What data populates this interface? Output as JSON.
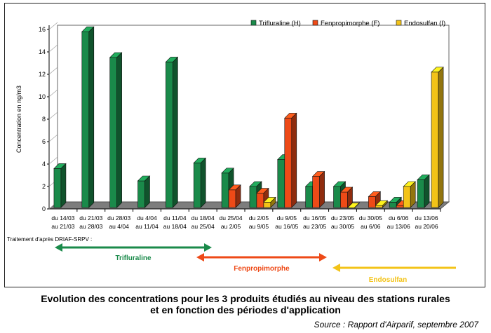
{
  "chart_data": {
    "type": "bar",
    "ylabel": "Concentration en ng/m3",
    "ylim": [
      0,
      16
    ],
    "yticks": [
      0,
      2,
      4,
      6,
      8,
      10,
      12,
      14,
      16
    ],
    "legend_position": "top-right",
    "categories": [
      [
        "du 14/03",
        "au 21/03"
      ],
      [
        "du 21/03",
        "au 28/03"
      ],
      [
        "du 28/03",
        "au 4/04"
      ],
      [
        "du 4/04",
        "au 11/04"
      ],
      [
        "du 11/04",
        "au 18/04"
      ],
      [
        "du 18/04",
        "au 25/04"
      ],
      [
        "du 25/04",
        "au 2/05"
      ],
      [
        "du 2/05",
        "au 9/05"
      ],
      [
        "du 9/05",
        "au 16/05"
      ],
      [
        "du 16/05",
        "au 23/05"
      ],
      [
        "du 23/05",
        "au 30/05"
      ],
      [
        "du 30/05",
        "au 6/06"
      ],
      [
        "du 6/06",
        "au 13/06"
      ],
      [
        "du 13/06",
        "au 20/06"
      ]
    ],
    "series": [
      {
        "name": "Trifluraline (H)",
        "color": "#1a8a4a",
        "values": [
          3.6,
          15.8,
          13.5,
          2.5,
          13.1,
          4.1,
          3.2,
          2.0,
          4.4,
          2.0,
          2.0,
          0,
          0.6,
          2.6
        ]
      },
      {
        "name": "Fenpropimorphe (F)",
        "color": "#ee4a17",
        "values": [
          0,
          0,
          0,
          0,
          0,
          0,
          1.7,
          1.4,
          8.1,
          2.9,
          1.5,
          1.1,
          0.3,
          0
        ]
      },
      {
        "name": "Endosulfan (I)",
        "color": "#f3c318",
        "values": [
          0,
          0,
          0,
          0,
          0,
          0,
          0,
          0.6,
          0,
          0,
          0.1,
          0.3,
          2.0,
          12.2
        ]
      }
    ]
  },
  "treatment_label": "Traitement d'après DRIAF-SRPV :",
  "treatment_periods": [
    {
      "name": "Trifluraline",
      "color": "#1a8a4a"
    },
    {
      "name": "Fenpropimorphe",
      "color": "#ee4a17"
    },
    {
      "name": "Endosulfan",
      "color": "#f3c318"
    }
  ],
  "caption_line1": "Evolution des concentrations pour les 3 produits étudiés au niveau des stations rurales",
  "caption_line2": "et en fonction des périodes d'application",
  "source": "Source : Rapport d'Airparif, septembre 2007"
}
